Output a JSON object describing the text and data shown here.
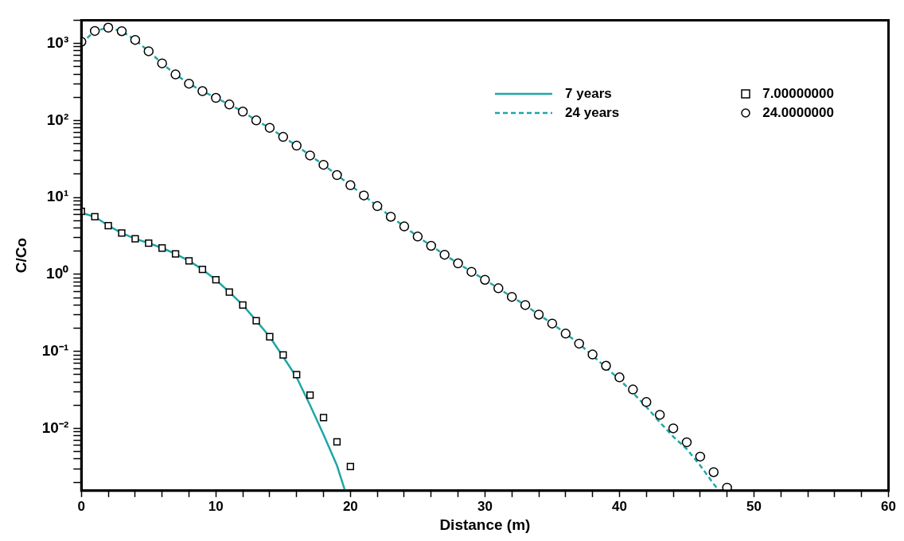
{
  "chart_data": {
    "type": "line",
    "xlabel": "Distance (m)",
    "ylabel": "C/Co",
    "log": "y",
    "grid": false,
    "legend": "top right",
    "xlim": [
      0,
      60
    ],
    "xticks": [
      0,
      {
        "value": 2,
        "label": null
      },
      {
        "value": 4,
        "label": null
      },
      {
        "value": 6,
        "label": null
      },
      {
        "value": 8,
        "label": null
      },
      10,
      {
        "value": 12,
        "label": null
      },
      {
        "value": 14,
        "label": null
      },
      {
        "value": 16,
        "label": null
      },
      {
        "value": 18,
        "label": null
      },
      20,
      {
        "value": 22,
        "label": null
      },
      {
        "value": 24,
        "label": null
      },
      {
        "value": 26,
        "label": null
      },
      {
        "value": 28,
        "label": null
      },
      30,
      {
        "value": 32,
        "label": null
      },
      {
        "value": 34,
        "label": null
      },
      {
        "value": 36,
        "label": null
      },
      {
        "value": 38,
        "label": null
      },
      40,
      {
        "value": 42,
        "label": null
      },
      {
        "value": 44,
        "label": null
      },
      {
        "value": 46,
        "label": null
      },
      {
        "value": 48,
        "label": null
      },
      50,
      {
        "value": 52,
        "label": null
      },
      {
        "value": 54,
        "label": null
      },
      {
        "value": 56,
        "label": null
      },
      {
        "value": 58,
        "label": null
      },
      60
    ],
    "ylim": [
      0.00155,
      2000
    ],
    "yticks": [
      {
        "value": 0.002,
        "label": null
      },
      {
        "value": 0.003,
        "label": null
      },
      {
        "value": 0.004,
        "label": null
      },
      {
        "value": 0.005,
        "label": null
      },
      {
        "value": 0.006,
        "label": null
      },
      {
        "value": 0.007,
        "label": null
      },
      {
        "value": 0.008,
        "label": null
      },
      {
        "value": 0.009,
        "label": null
      },
      {
        "value": 0.01,
        "label": "10⁻²"
      },
      {
        "value": 0.02,
        "label": null
      },
      {
        "value": 0.03,
        "label": null
      },
      {
        "value": 0.04,
        "label": null
      },
      {
        "value": 0.05,
        "label": null
      },
      {
        "value": 0.06,
        "label": null
      },
      {
        "value": 0.07,
        "label": null
      },
      {
        "value": 0.08,
        "label": null
      },
      {
        "value": 0.09,
        "label": null
      },
      {
        "value": 0.1,
        "label": "10⁻¹"
      },
      {
        "value": 0.2,
        "label": null
      },
      {
        "value": 0.3,
        "label": null
      },
      {
        "value": 0.4,
        "label": null
      },
      {
        "value": 0.5,
        "label": null
      },
      {
        "value": 0.6,
        "label": null
      },
      {
        "value": 0.7,
        "label": null
      },
      {
        "value": 0.8,
        "label": null
      },
      {
        "value": 0.9,
        "label": null
      },
      {
        "value": 1,
        "label": "10⁰"
      },
      {
        "value": 2,
        "label": null
      },
      {
        "value": 3,
        "label": null
      },
      {
        "value": 4,
        "label": null
      },
      {
        "value": 5,
        "label": null
      },
      {
        "value": 6,
        "label": null
      },
      {
        "value": 7,
        "label": null
      },
      {
        "value": 8,
        "label": null
      },
      {
        "value": 9,
        "label": null
      },
      {
        "value": 10,
        "label": "10¹"
      },
      {
        "value": 20,
        "label": null
      },
      {
        "value": 30,
        "label": null
      },
      {
        "value": 40,
        "label": null
      },
      {
        "value": 50,
        "label": null
      },
      {
        "value": 60,
        "label": null
      },
      {
        "value": 70,
        "label": null
      },
      {
        "value": 80,
        "label": null
      },
      {
        "value": 90,
        "label": null
      },
      {
        "value": 100,
        "label": "10²"
      },
      {
        "value": 200,
        "label": null
      },
      {
        "value": 300,
        "label": null
      },
      {
        "value": 400,
        "label": null
      },
      {
        "value": 500,
        "label": null
      },
      {
        "value": 600,
        "label": null
      },
      {
        "value": 700,
        "label": null
      },
      {
        "value": 800,
        "label": null
      },
      {
        "value": 900,
        "label": null
      },
      {
        "value": 1000,
        "label": "10³"
      },
      {
        "value": 2000,
        "label": null
      }
    ],
    "series": [
      {
        "name": "7 years",
        "type": "line",
        "color": "#1fa6a6",
        "marker": "none",
        "line_style": "solid",
        "x": [
          0,
          1,
          2,
          3,
          4,
          5,
          6,
          7,
          8,
          9,
          10,
          11,
          12,
          13,
          14,
          15,
          16,
          17,
          18,
          19,
          19.6
        ],
        "values": [
          6.3,
          5.6,
          4.3,
          3.45,
          2.9,
          2.55,
          2.2,
          1.85,
          1.5,
          1.16,
          0.85,
          0.59,
          0.4,
          0.25,
          0.155,
          0.085,
          0.046,
          0.02,
          0.0083,
          0.0033,
          0.00155
        ]
      },
      {
        "name": "24 years",
        "type": "line",
        "color": "#1fa6a6",
        "marker": "none",
        "line_style": "dashed",
        "x": [
          0,
          1,
          2,
          3,
          4,
          5,
          6,
          7,
          8,
          9,
          10,
          11,
          12,
          13,
          14,
          15,
          16,
          17,
          18,
          19,
          20,
          21,
          22,
          23,
          24,
          25,
          26,
          27,
          28,
          29,
          30,
          31,
          32,
          33,
          34,
          35,
          36,
          37,
          38,
          39,
          40,
          41,
          42,
          43,
          44,
          45,
          46,
          47,
          47.4
        ],
        "values": [
          1000,
          1450,
          1600,
          1440,
          1110,
          790,
          550,
          395,
          300,
          240,
          196,
          161,
          130,
          100,
          80,
          61,
          47,
          35,
          26.5,
          19.5,
          14.4,
          10.6,
          7.7,
          5.6,
          4.2,
          3.1,
          2.35,
          1.8,
          1.39,
          1.08,
          0.85,
          0.66,
          0.51,
          0.4,
          0.3,
          0.23,
          0.17,
          0.126,
          0.088,
          0.062,
          0.043,
          0.029,
          0.019,
          0.012,
          0.0078,
          0.0054,
          0.0033,
          0.0019,
          0.00155
        ]
      },
      {
        "name": "7.00000000",
        "type": "scatter",
        "color": "#000000",
        "marker": "square",
        "x": [
          0,
          1,
          2,
          3,
          4,
          5,
          6,
          7,
          8,
          9,
          10,
          11,
          12,
          13,
          14,
          15,
          16,
          17,
          18,
          19,
          20
        ],
        "values": [
          6.6,
          5.6,
          4.3,
          3.45,
          2.9,
          2.55,
          2.2,
          1.85,
          1.5,
          1.16,
          0.85,
          0.59,
          0.4,
          0.25,
          0.155,
          0.09,
          0.05,
          0.027,
          0.0138,
          0.0067,
          0.0032
        ]
      },
      {
        "name": "24.0000000",
        "type": "scatter",
        "color": "#000000",
        "marker": "circle",
        "x": [
          0,
          1,
          2,
          3,
          4,
          5,
          6,
          7,
          8,
          9,
          10,
          11,
          12,
          13,
          14,
          15,
          16,
          17,
          18,
          19,
          20,
          21,
          22,
          23,
          24,
          25,
          26,
          27,
          28,
          29,
          30,
          31,
          32,
          33,
          34,
          35,
          36,
          37,
          38,
          39,
          40,
          41,
          42,
          43,
          44,
          45,
          46,
          47,
          48
        ],
        "values": [
          1050,
          1450,
          1600,
          1440,
          1110,
          790,
          550,
          395,
          300,
          240,
          196,
          161,
          130,
          100,
          80,
          61,
          47,
          35,
          26.5,
          19.5,
          14.4,
          10.6,
          7.7,
          5.6,
          4.2,
          3.1,
          2.35,
          1.8,
          1.39,
          1.08,
          0.85,
          0.66,
          0.51,
          0.4,
          0.3,
          0.23,
          0.17,
          0.126,
          0.091,
          0.065,
          0.046,
          0.032,
          0.022,
          0.015,
          0.01,
          0.0066,
          0.0043,
          0.0027,
          0.0017
        ]
      }
    ]
  }
}
